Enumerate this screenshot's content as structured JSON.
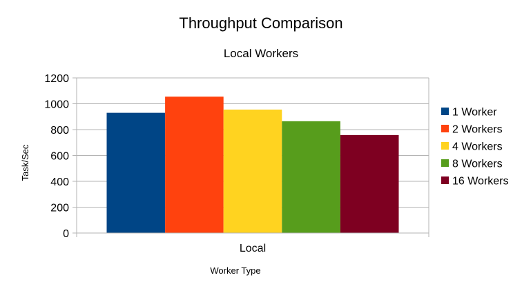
{
  "chart_data": {
    "type": "bar",
    "title": "Throughput Comparison",
    "subtitle": "Local Workers",
    "xlabel": "Worker Type",
    "ylabel": "Task/Sec",
    "categories": [
      "Local"
    ],
    "ylim": [
      0,
      1200
    ],
    "yticks": [
      "0",
      "200",
      "400",
      "600",
      "800",
      "1000",
      "1200"
    ],
    "grid": true,
    "legend_position": "right",
    "series": [
      {
        "name": "1 Worker",
        "values": [
          930
        ],
        "color": "#004586"
      },
      {
        "name": "2 Workers",
        "values": [
          1055
        ],
        "color": "#ff420e"
      },
      {
        "name": "4 Workers",
        "values": [
          955
        ],
        "color": "#ffd320"
      },
      {
        "name": "8 Workers",
        "values": [
          865
        ],
        "color": "#579d1c"
      },
      {
        "name": "16 Workers",
        "values": [
          758
        ],
        "color": "#7e0021"
      }
    ]
  }
}
